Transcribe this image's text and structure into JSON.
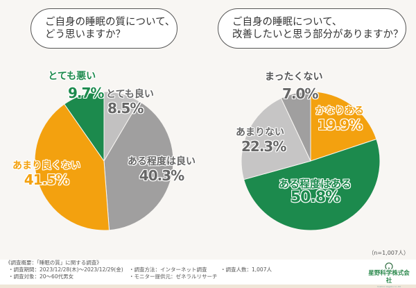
{
  "questions": {
    "q1": [
      "ご自身の睡眠の質について、",
      "どう思いますか？"
    ],
    "q2": [
      "ご自身の睡眠について、",
      "改善したいと思う部分がありますか？"
    ]
  },
  "chart_data": [
    {
      "type": "pie",
      "title": "ご自身の睡眠の質について、どう思いますか？",
      "start": "12 o'clock, clockwise",
      "slices": [
        {
          "label": "とても良い",
          "value": 8.5,
          "display": "8.5%",
          "color": "#c2c1c1",
          "label_color": "#666666"
        },
        {
          "label": "ある程度は良い",
          "value": 40.3,
          "display": "40.3%",
          "color": "#a09f9f",
          "label_color": "#666666"
        },
        {
          "label": "あまり良くない",
          "value": 41.5,
          "display": "41.5%",
          "color": "#f3a10f",
          "label_color": "#f3a10f"
        },
        {
          "label": "とても悪い",
          "value": 9.7,
          "display": "9.7%",
          "color": "#1c8a4d",
          "label_color": "#1c8a4d"
        }
      ]
    },
    {
      "type": "pie",
      "title": "ご自身の睡眠について、改善したいと思う部分がありますか？",
      "start": "12 o'clock, clockwise",
      "slices": [
        {
          "label": "かなりある",
          "value": 19.9,
          "display": "19.9%",
          "color": "#f3a10f",
          "label_color": "#f3a10f"
        },
        {
          "label": "ある程度はある",
          "value": 50.8,
          "display": "50.8%",
          "color": "#1c8a4d",
          "label_color": "#1c8a4d"
        },
        {
          "label": "あまりない",
          "value": 22.3,
          "display": "22.3%",
          "color": "#c6c5c5",
          "label_color": "#666666"
        },
        {
          "label": "まったくない",
          "value": 7.0,
          "display": "7.0%",
          "color": "#a09f9f",
          "label_color": "#666666"
        }
      ]
    }
  ],
  "sample_size": "（n=1,007人）",
  "survey": {
    "heading": "《調査概要：「睡眠の質」に関する調査》",
    "period": "・調査期間：2023/12/28(木)～2023/12/29(金)",
    "method": "・調査方法：インターネット調査",
    "count": "・調査人数：1,007人",
    "target": "・調査対象：20～60代男女",
    "provider": "・モニター提供元：ゼネラルリサーチ"
  },
  "company": {
    "name": "星野科学株式会社",
    "sub": "hoshino kagaku co.,ltd",
    "color": "#2d8a4e"
  }
}
